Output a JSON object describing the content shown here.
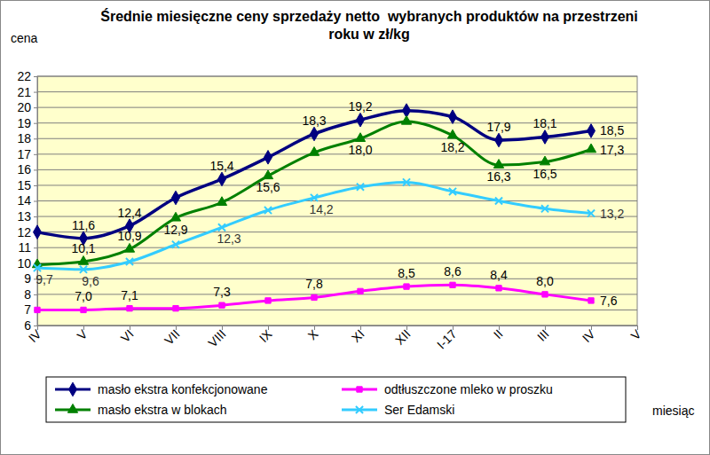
{
  "chart_data": {
    "type": "line",
    "title": "Średnie miesięczne ceny sprzedaży netto  wybranych produktów na przestrzeni roku w zł/kg",
    "x_label": "miesiąc",
    "y_label": "cena",
    "categories": [
      "IV",
      "V",
      "VI",
      "VII",
      "VIII",
      "IX",
      "X",
      "XI",
      "XII",
      "I-17",
      "II",
      "III",
      "IV",
      "V"
    ],
    "ylim": [
      6,
      22
    ],
    "yticks": [
      6,
      7,
      8,
      9,
      10,
      11,
      12,
      13,
      14,
      15,
      16,
      17,
      18,
      19,
      20,
      21,
      22
    ],
    "grid": true,
    "data_labels": true,
    "legend": "bottom",
    "series": [
      {
        "name": "masło ekstra konfekcjonowane",
        "color": "#000080",
        "marker": "diamond",
        "line_style": "solid",
        "values": [
          12.0,
          11.6,
          12.4,
          14.2,
          15.4,
          16.8,
          18.3,
          19.2,
          19.8,
          19.4,
          17.9,
          18.1,
          18.5,
          null
        ],
        "value_labels": [
          null,
          "11,6",
          "12,4",
          null,
          "15,4",
          null,
          "18,3",
          "19,2",
          null,
          null,
          "17,9",
          "18,1",
          "18,5",
          null
        ]
      },
      {
        "name": "masło ekstra w blokach",
        "color": "#008000",
        "marker": "triangle",
        "line_style": "solid",
        "values": [
          9.9,
          10.1,
          10.9,
          12.9,
          13.9,
          15.6,
          17.1,
          18.0,
          19.1,
          18.2,
          16.3,
          16.5,
          17.3,
          null
        ],
        "value_labels": [
          null,
          "10,1",
          "10,9",
          "12,9",
          null,
          "15,6",
          null,
          "18,0",
          null,
          "18,2",
          "16,3",
          "16,5",
          "17,3",
          null
        ]
      },
      {
        "name": "odtłuszczone mleko w proszku",
        "color": "#FF00FF",
        "marker": "square",
        "line_style": "solid",
        "values": [
          7.0,
          7.0,
          7.1,
          7.1,
          7.3,
          7.6,
          7.8,
          8.2,
          8.5,
          8.6,
          8.4,
          8.0,
          7.6,
          null
        ],
        "value_labels": [
          null,
          "7,0",
          "7,1",
          null,
          "7,3",
          null,
          "7,8",
          null,
          "8,5",
          "8,6",
          "8,4",
          "8,0",
          "7,6",
          null
        ]
      },
      {
        "name": "Ser Edamski",
        "color": "#33CCFF",
        "marker": "x",
        "line_style": "solid",
        "values": [
          9.7,
          9.6,
          10.1,
          11.2,
          12.3,
          13.4,
          14.2,
          14.9,
          15.2,
          14.6,
          14.0,
          13.5,
          13.2,
          null
        ],
        "value_labels": [
          "9,7",
          "9,6",
          null,
          null,
          "12,3",
          null,
          "14,2",
          null,
          null,
          null,
          null,
          null,
          "13,2",
          null
        ]
      }
    ]
  }
}
